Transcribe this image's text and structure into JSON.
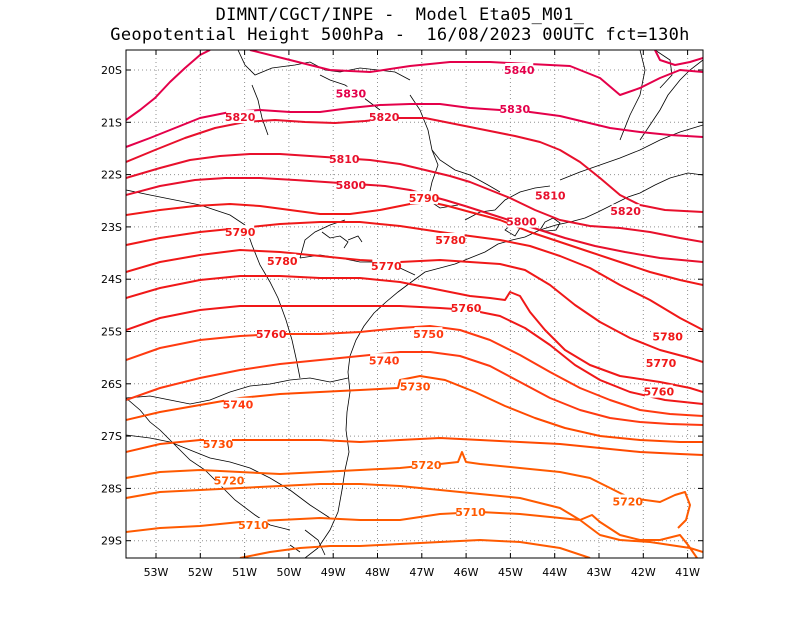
{
  "title": {
    "line1": "DIMNT/CGCT/INPE -  Model Eta05_M01_",
    "line2": "Geopotential Height 500hPa -  16/08/2023 00UTC fct=130h"
  },
  "axes": {
    "lon_labels": [
      "53W",
      "52W",
      "51W",
      "50W",
      "49W",
      "48W",
      "47W",
      "46W",
      "45W",
      "44W",
      "43W",
      "42W",
      "41W"
    ],
    "lat_labels": [
      "20S",
      "21S",
      "22S",
      "23S",
      "24S",
      "25S",
      "26S",
      "27S",
      "28S",
      "29S"
    ]
  },
  "colors": {
    "high": "#e4004a",
    "mid": "#f01818",
    "low": "#ff5a00",
    "coast": "#000000",
    "grid": "#909090"
  },
  "contour_labels": [
    {
      "text": "5840",
      "lon": -44.8,
      "lat": -20.0,
      "color": "#e4004a"
    },
    {
      "text": "5830",
      "lon": -48.6,
      "lat": -20.45,
      "color": "#e4004a"
    },
    {
      "text": "5830",
      "lon": -44.9,
      "lat": -20.75,
      "color": "#e4004a"
    },
    {
      "text": "5820",
      "lon": -51.1,
      "lat": -20.9,
      "color": "#e8102c"
    },
    {
      "text": "5820",
      "lon": -47.85,
      "lat": -20.9,
      "color": "#e8102c"
    },
    {
      "text": "5820",
      "lon": -42.4,
      "lat": -22.7,
      "color": "#e8102c"
    },
    {
      "text": "5810",
      "lon": -48.75,
      "lat": -21.7,
      "color": "#e8102c"
    },
    {
      "text": "5810",
      "lon": -44.1,
      "lat": -22.4,
      "color": "#e8102c"
    },
    {
      "text": "5800",
      "lon": -48.6,
      "lat": -22.2,
      "color": "#e8102c"
    },
    {
      "text": "5800",
      "lon": -44.75,
      "lat": -22.9,
      "color": "#e8102c"
    },
    {
      "text": "5790",
      "lon": -46.95,
      "lat": -22.45,
      "color": "#f01818"
    },
    {
      "text": "5790",
      "lon": -51.1,
      "lat": -23.1,
      "color": "#f01818"
    },
    {
      "text": "5780",
      "lon": -46.35,
      "lat": -23.25,
      "color": "#f01818"
    },
    {
      "text": "5780",
      "lon": -50.15,
      "lat": -23.65,
      "color": "#f01818"
    },
    {
      "text": "5780",
      "lon": -41.45,
      "lat": -25.1,
      "color": "#f01818"
    },
    {
      "text": "5770",
      "lon": -47.8,
      "lat": -23.75,
      "color": "#f01818"
    },
    {
      "text": "5770",
      "lon": -41.6,
      "lat": -25.6,
      "color": "#f01818"
    },
    {
      "text": "5760",
      "lon": -46.0,
      "lat": -24.55,
      "color": "#f01818"
    },
    {
      "text": "5760",
      "lon": -50.4,
      "lat": -25.05,
      "color": "#f01818"
    },
    {
      "text": "5760",
      "lon": -41.65,
      "lat": -26.15,
      "color": "#f01818"
    },
    {
      "text": "5750",
      "lon": -46.85,
      "lat": -25.05,
      "color": "#ff3a10"
    },
    {
      "text": "5740",
      "lon": -47.85,
      "lat": -25.55,
      "color": "#ff3a10"
    },
    {
      "text": "5740",
      "lon": -51.15,
      "lat": -26.4,
      "color": "#ff3a10"
    },
    {
      "text": "5730",
      "lon": -47.15,
      "lat": -26.05,
      "color": "#ff4a00"
    },
    {
      "text": "5730",
      "lon": -51.6,
      "lat": -27.15,
      "color": "#ff4a00"
    },
    {
      "text": "5720",
      "lon": -46.9,
      "lat": -27.55,
      "color": "#ff5a00"
    },
    {
      "text": "5720",
      "lon": -51.35,
      "lat": -27.85,
      "color": "#ff5a00"
    },
    {
      "text": "5720",
      "lon": -42.35,
      "lat": -28.25,
      "color": "#ff5a00"
    },
    {
      "text": "5710",
      "lon": -45.9,
      "lat": -28.45,
      "color": "#ff5a00"
    },
    {
      "text": "5710",
      "lon": -50.8,
      "lat": -28.7,
      "color": "#ff5a00"
    }
  ]
}
